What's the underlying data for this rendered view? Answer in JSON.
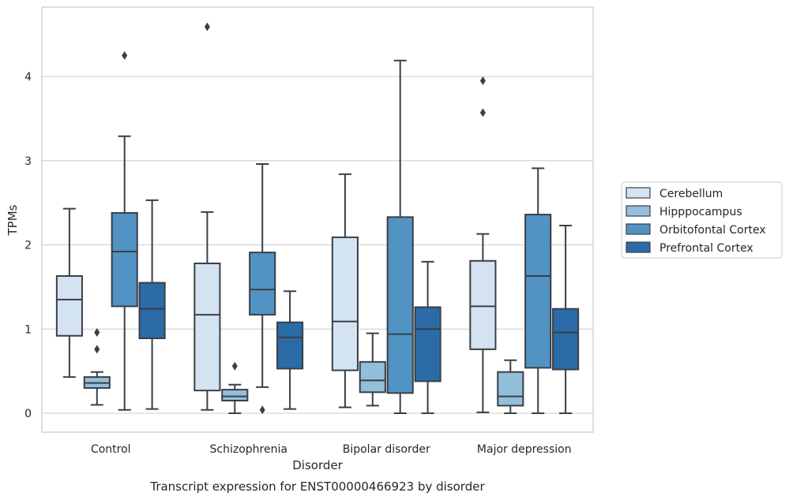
{
  "chart_data": {
    "type": "boxplot",
    "caption": "Transcript expression for ENST00000466923 by disorder",
    "xlabel": "Disorder",
    "ylabel": "TPMs",
    "ylim": [
      -0.22,
      4.83
    ],
    "yticks": [
      0,
      1,
      2,
      3,
      4
    ],
    "grid": "horizontal",
    "legend_position": "right",
    "categories": [
      "Control",
      "Schizophrenia",
      "Bipolar disorder",
      "Major depression"
    ],
    "series": [
      {
        "name": "Cerebellum",
        "color": "#d3e3f2",
        "boxes": [
          {
            "whislo": 0.43,
            "q1": 0.92,
            "med": 1.35,
            "q3": 1.63,
            "whishi": 2.43,
            "fliers": []
          },
          {
            "whislo": 0.04,
            "q1": 0.27,
            "med": 1.17,
            "q3": 1.78,
            "whishi": 2.39,
            "fliers": [
              4.59
            ]
          },
          {
            "whislo": 0.07,
            "q1": 0.51,
            "med": 1.09,
            "q3": 2.09,
            "whishi": 2.84,
            "fliers": []
          },
          {
            "whislo": 0.01,
            "q1": 0.76,
            "med": 1.27,
            "q3": 1.81,
            "whishi": 2.13,
            "fliers": [
              3.57,
              3.95
            ]
          }
        ]
      },
      {
        "name": "Hipppocampus",
        "color": "#93bfdb",
        "boxes": [
          {
            "whislo": 0.1,
            "q1": 0.3,
            "med": 0.36,
            "q3": 0.43,
            "whishi": 0.49,
            "fliers": [
              0.76,
              0.96
            ]
          },
          {
            "whislo": 0.0,
            "q1": 0.15,
            "med": 0.2,
            "q3": 0.28,
            "whishi": 0.34,
            "fliers": [
              0.56
            ]
          },
          {
            "whislo": 0.09,
            "q1": 0.25,
            "med": 0.39,
            "q3": 0.61,
            "whishi": 0.95,
            "fliers": []
          },
          {
            "whislo": 0.0,
            "q1": 0.09,
            "med": 0.2,
            "q3": 0.49,
            "whishi": 0.63,
            "fliers": []
          }
        ]
      },
      {
        "name": "Orbitofontal Cortex",
        "color": "#5193c3",
        "boxes": [
          {
            "whislo": 0.04,
            "q1": 1.27,
            "med": 1.92,
            "q3": 2.38,
            "whishi": 3.29,
            "fliers": [
              4.25
            ]
          },
          {
            "whislo": 0.31,
            "q1": 1.17,
            "med": 1.47,
            "q3": 1.91,
            "whishi": 2.96,
            "fliers": [
              0.04
            ]
          },
          {
            "whislo": 0.0,
            "q1": 0.24,
            "med": 0.94,
            "q3": 2.33,
            "whishi": 4.19,
            "fliers": []
          },
          {
            "whislo": 0.0,
            "q1": 0.54,
            "med": 1.63,
            "q3": 2.36,
            "whishi": 2.91,
            "fliers": []
          }
        ]
      },
      {
        "name": "Prefrontal Cortex",
        "color": "#2b6ba8",
        "boxes": [
          {
            "whislo": 0.05,
            "q1": 0.89,
            "med": 1.24,
            "q3": 1.55,
            "whishi": 2.53,
            "fliers": []
          },
          {
            "whislo": 0.05,
            "q1": 0.53,
            "med": 0.9,
            "q3": 1.08,
            "whishi": 1.45,
            "fliers": []
          },
          {
            "whislo": 0.0,
            "q1": 0.38,
            "med": 1.0,
            "q3": 1.26,
            "whishi": 1.8,
            "fliers": []
          },
          {
            "whislo": 0.0,
            "q1": 0.52,
            "med": 0.96,
            "q3": 1.24,
            "whishi": 2.23,
            "fliers": []
          }
        ]
      }
    ]
  }
}
